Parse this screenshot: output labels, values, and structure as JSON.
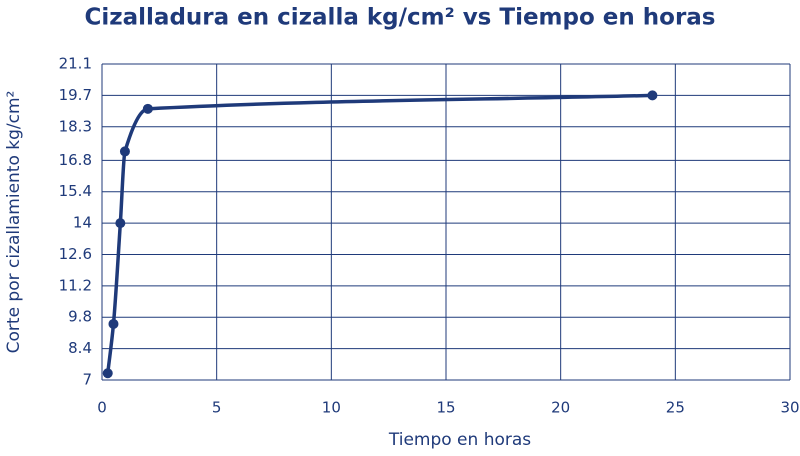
{
  "chart_data": {
    "type": "line",
    "title": "Cizalladura en cizalla kg/cm² vs Tiempo en horas",
    "x_label": "Tiempo en horas",
    "y_label": "Corte por cizallamiento kg/cm²",
    "series": [
      {
        "name": "Corte por cizallamiento",
        "color": "#1f3a7a",
        "x": [
          0.25,
          0.5,
          0.8,
          1,
          2,
          24
        ],
        "values": [
          7.3,
          9.5,
          14,
          17.2,
          19.1,
          19.7
        ]
      }
    ],
    "xlim": [
      0,
      30
    ],
    "xticks": [
      0,
      5,
      10,
      15,
      20,
      25,
      30
    ],
    "ylim": [
      7,
      21.1
    ],
    "yticks": [
      7,
      8.4,
      9.8,
      11.2,
      12.6,
      14,
      15.4,
      16.8,
      18.3,
      19.7,
      21.1
    ],
    "grid": true
  }
}
